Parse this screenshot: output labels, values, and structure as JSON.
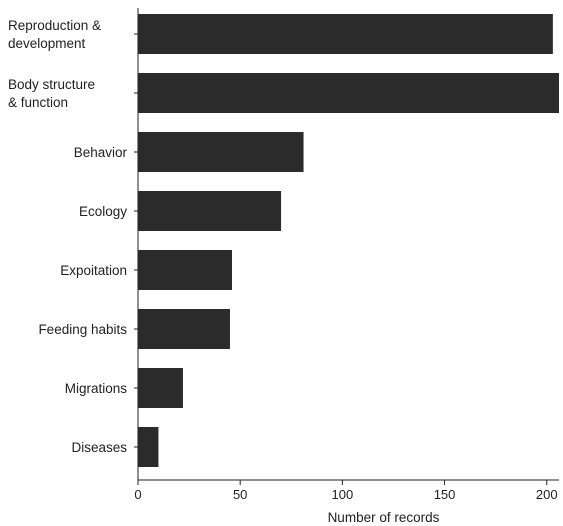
{
  "chart_data": {
    "type": "bar",
    "orientation": "horizontal",
    "categories": [
      [
        "Reproduction &",
        "development"
      ],
      [
        "Body structure",
        "& function"
      ],
      [
        "Behavior"
      ],
      [
        "Ecology"
      ],
      [
        "Expoitation"
      ],
      [
        "Feeding habits"
      ],
      [
        "Migrations"
      ],
      [
        "Diseases"
      ]
    ],
    "values": [
      203,
      206,
      81,
      70,
      46,
      45,
      22,
      10
    ],
    "xlabel": "Number of records",
    "ylabel": "",
    "xlim": [
      0,
      206
    ],
    "xticks": [
      0,
      50,
      100,
      150,
      200
    ],
    "grid": false,
    "legend": "none",
    "bar_color": "#2b2b2b"
  }
}
